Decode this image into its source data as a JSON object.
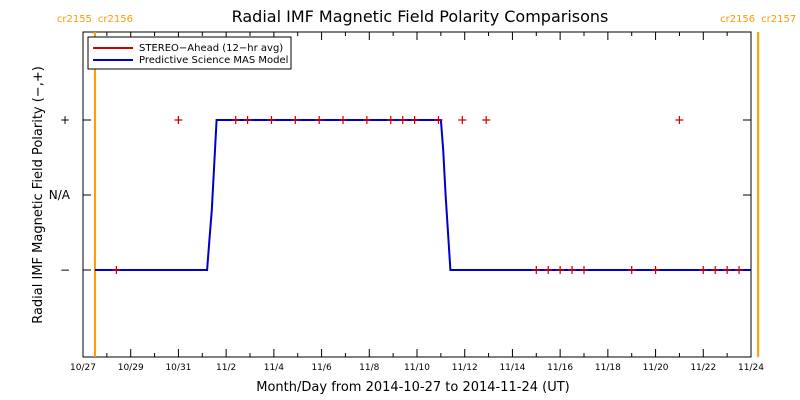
{
  "chart_data": {
    "type": "line",
    "title": "Radial IMF Magnetic Field Polarity Comparisons",
    "xlabel": "Month/Day from 2014-10-27 to 2014-11-24 (UT)",
    "ylabel": "Radial IMF Magnetic Field Polarity (−,+)",
    "x_range": [
      "10/27",
      "11/24"
    ],
    "x_tick_labels": [
      "10/27",
      "10/29",
      "10/31",
      "11/2",
      "11/4",
      "11/6",
      "11/8",
      "11/10",
      "11/12",
      "11/14",
      "11/16",
      "11/18",
      "11/20",
      "11/22",
      "11/24"
    ],
    "y_categories": [
      "−",
      "N/A",
      "+"
    ],
    "legend_position": "top-left",
    "carrington_markers": [
      {
        "day": 0.5,
        "left_text": "cr2155",
        "right_text": "cr2156"
      },
      {
        "day": 28.3,
        "left_text": "cr2156",
        "right_text": "cr2157"
      }
    ],
    "colors": {
      "stereo": "#cc0000",
      "model": "#0000cc",
      "carrington": "#ff9900"
    },
    "series": [
      {
        "name": "STEREO−Ahead (12−hr avg)",
        "style": "markers",
        "points": [
          {
            "day": 1.4,
            "polarity": "−"
          },
          {
            "day": 4.0,
            "polarity": "+"
          },
          {
            "day": 6.4,
            "polarity": "+"
          },
          {
            "day": 6.9,
            "polarity": "+"
          },
          {
            "day": 7.9,
            "polarity": "+"
          },
          {
            "day": 8.9,
            "polarity": "+"
          },
          {
            "day": 9.9,
            "polarity": "+"
          },
          {
            "day": 10.9,
            "polarity": "+"
          },
          {
            "day": 11.9,
            "polarity": "+"
          },
          {
            "day": 12.9,
            "polarity": "+"
          },
          {
            "day": 13.4,
            "polarity": "+"
          },
          {
            "day": 13.9,
            "polarity": "+"
          },
          {
            "day": 14.9,
            "polarity": "+"
          },
          {
            "day": 15.9,
            "polarity": "+"
          },
          {
            "day": 16.9,
            "polarity": "+"
          },
          {
            "day": 19.0,
            "polarity": "−"
          },
          {
            "day": 19.5,
            "polarity": "−"
          },
          {
            "day": 20.0,
            "polarity": "−"
          },
          {
            "day": 20.5,
            "polarity": "−"
          },
          {
            "day": 21.0,
            "polarity": "−"
          },
          {
            "day": 23.0,
            "polarity": "−"
          },
          {
            "day": 24.0,
            "polarity": "−"
          },
          {
            "day": 25.0,
            "polarity": "+"
          },
          {
            "day": 26.0,
            "polarity": "−"
          },
          {
            "day": 26.5,
            "polarity": "−"
          },
          {
            "day": 27.0,
            "polarity": "−"
          },
          {
            "day": 27.5,
            "polarity": "−"
          }
        ]
      },
      {
        "name": "Predictive Science MAS Model",
        "style": "line",
        "points": [
          {
            "day": 0.5,
            "value": -1
          },
          {
            "day": 5.2,
            "value": -1
          },
          {
            "day": 5.3,
            "value": -0.6
          },
          {
            "day": 5.4,
            "value": -0.2
          },
          {
            "day": 5.5,
            "value": 0.4
          },
          {
            "day": 5.6,
            "value": 1
          },
          {
            "day": 15.0,
            "value": 1
          },
          {
            "day": 15.1,
            "value": 0.6
          },
          {
            "day": 15.2,
            "value": 0
          },
          {
            "day": 15.3,
            "value": -0.5
          },
          {
            "day": 15.4,
            "value": -1
          },
          {
            "day": 28.0,
            "value": -1
          }
        ]
      }
    ]
  }
}
